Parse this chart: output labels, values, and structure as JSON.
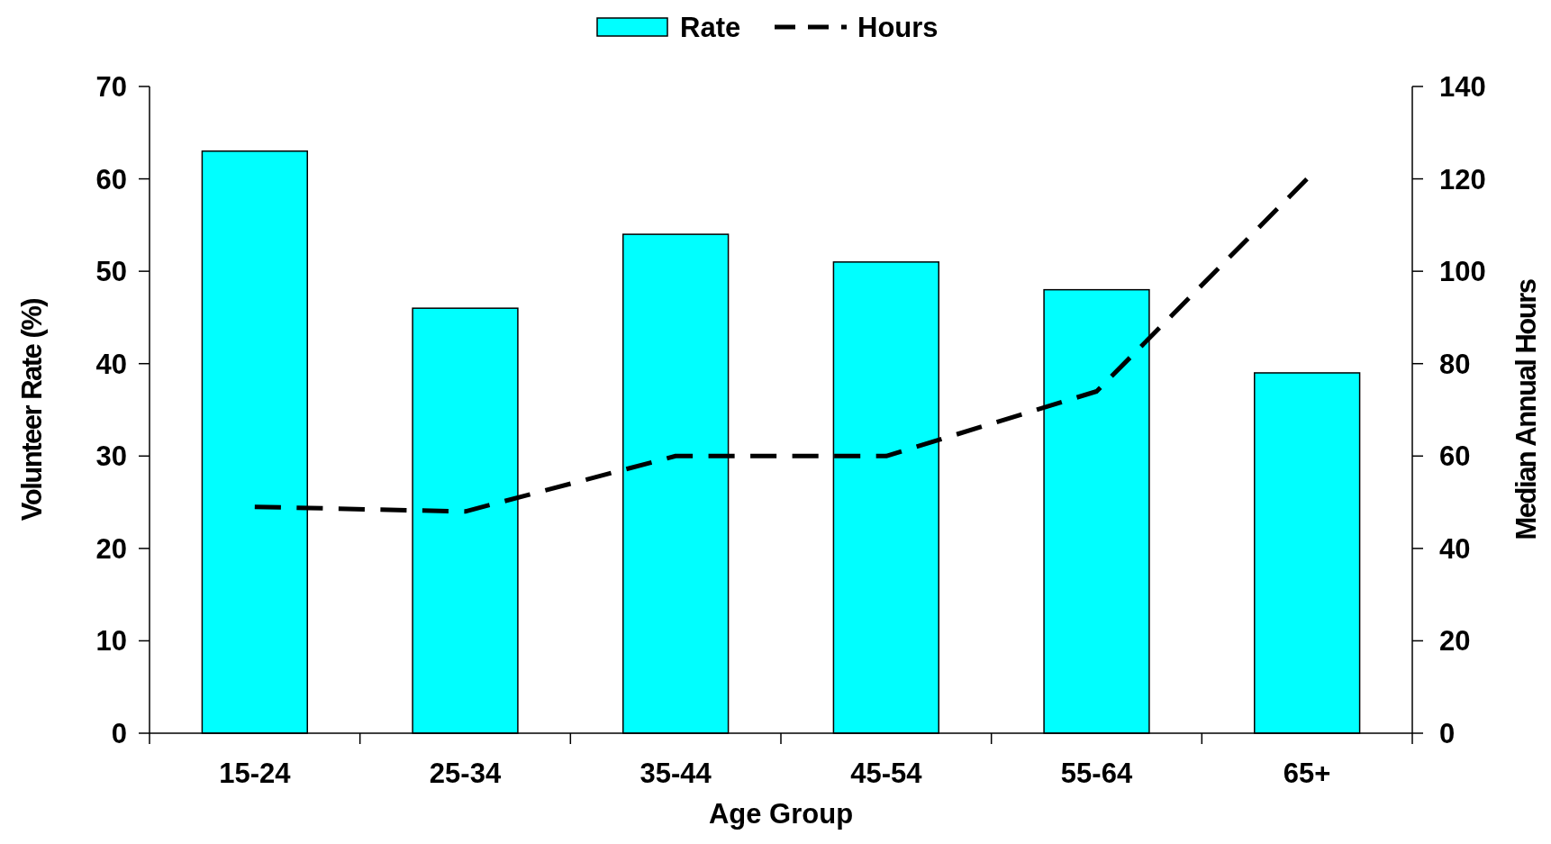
{
  "chart_data": {
    "type": "bar",
    "xlabel": "Age Group",
    "ylabel": "Volunteer Rate (%)",
    "y2label": "Median Annual Hours",
    "categories": [
      "15-24",
      "25-34",
      "35-44",
      "45-54",
      "55-64",
      "65+"
    ],
    "series": [
      {
        "name": "Rate",
        "color": "#00ffff",
        "values": [
          63,
          46,
          54,
          51,
          48,
          39
        ]
      },
      {
        "name": "Hours",
        "type": "line",
        "axis": "y2",
        "color": "#000000",
        "line_style": "dashed",
        "values": [
          49,
          48,
          60,
          60,
          74,
          120
        ]
      }
    ],
    "ylim": [
      0,
      70
    ],
    "yticks": [
      0,
      10,
      20,
      30,
      40,
      50,
      60,
      70
    ],
    "y2lim": [
      0,
      140
    ],
    "y2ticks": [
      0,
      20,
      40,
      60,
      80,
      100,
      120,
      140
    ],
    "legend": "top",
    "grid": false
  }
}
